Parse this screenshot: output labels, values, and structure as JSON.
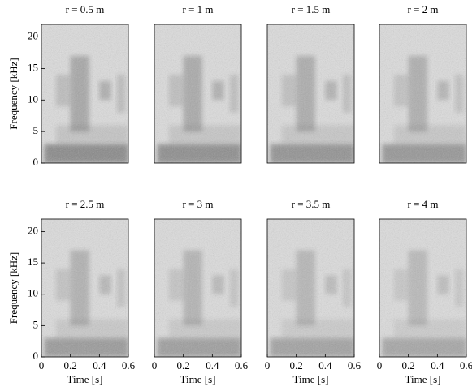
{
  "chart_data": [
    {
      "type": "spectrogram",
      "title": "r = 0.5 m",
      "xlim": [
        0,
        0.6
      ],
      "ylim": [
        0,
        22
      ],
      "yticks": [
        0,
        5,
        10,
        15,
        20
      ],
      "ylabel": "Frequency [kHz]"
    },
    {
      "type": "spectrogram",
      "title": "r = 1 m",
      "xlim": [
        0,
        0.6
      ],
      "ylim": [
        0,
        22
      ]
    },
    {
      "type": "spectrogram",
      "title": "r = 1.5 m",
      "xlim": [
        0,
        0.6
      ],
      "ylim": [
        0,
        22
      ]
    },
    {
      "type": "spectrogram",
      "title": "r = 2 m",
      "xlim": [
        0,
        0.6
      ],
      "ylim": [
        0,
        22
      ]
    },
    {
      "type": "spectrogram",
      "title": "r = 2.5 m",
      "xlim": [
        0,
        0.6
      ],
      "ylim": [
        0,
        22
      ],
      "xticks": [
        0,
        0.2,
        0.4,
        0.6
      ],
      "yticks": [
        0,
        5,
        10,
        15,
        20
      ],
      "xlabel": "Time [s]",
      "ylabel": "Frequency [kHz]"
    },
    {
      "type": "spectrogram",
      "title": "r = 3 m",
      "xlim": [
        0,
        0.6
      ],
      "ylim": [
        0,
        22
      ],
      "xticks": [
        0,
        0.2,
        0.4,
        0.6
      ],
      "xlabel": "Time [s]"
    },
    {
      "type": "spectrogram",
      "title": "r = 3.5 m",
      "xlim": [
        0,
        0.6
      ],
      "ylim": [
        0,
        22
      ],
      "xticks": [
        0,
        0.2,
        0.4,
        0.6
      ],
      "xlabel": "Time [s]"
    },
    {
      "type": "spectrogram",
      "title": "r = 4 m",
      "xlim": [
        0,
        0.6
      ],
      "ylim": [
        0,
        22
      ],
      "xticks": [
        0,
        0.2,
        0.4,
        0.6
      ],
      "xlabel": "Time [s]"
    }
  ]
}
